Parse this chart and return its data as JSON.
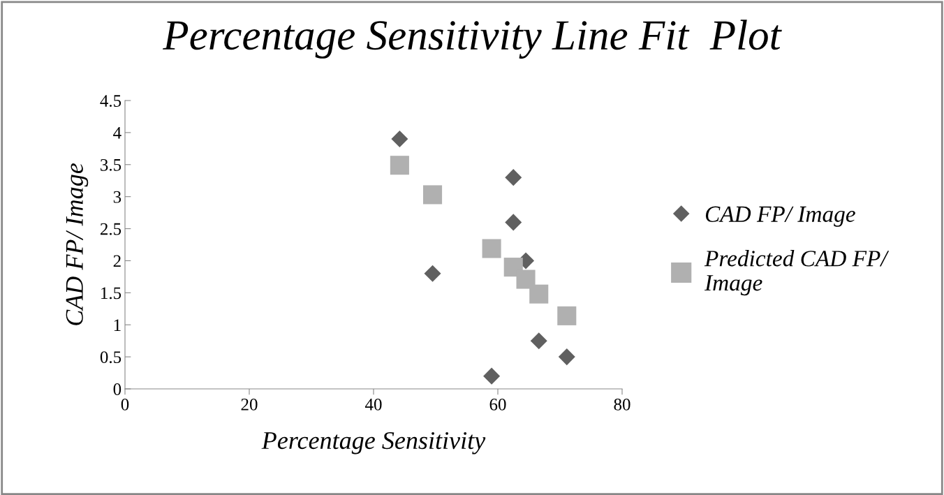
{
  "chart_data": {
    "type": "scatter",
    "title": "Percentage Sensitivity Line Fit  Plot",
    "xlabel": "Percentage Sensitivity",
    "ylabel": "CAD FP/ Image",
    "xlim": [
      0,
      80
    ],
    "xticks": [
      0,
      20,
      40,
      60,
      80
    ],
    "ylim": [
      0,
      4.5
    ],
    "yticks": [
      0,
      0.5,
      1,
      1.5,
      2,
      2.5,
      3,
      3.5,
      4,
      {
        "value": 4.5,
        "label": "4.5"
      }
    ],
    "grid": false,
    "legend": "right",
    "series": [
      {
        "name": "CAD FP/ Image",
        "color": "#606060",
        "marker": "diamond",
        "x": [
          44.2,
          49.5,
          59,
          62.5,
          62.5,
          64.5,
          66.6,
          71.1
        ],
        "values": [
          3.9,
          1.8,
          0.2,
          3.3,
          2.6,
          2.0,
          0.75,
          0.5
        ]
      },
      {
        "name": "Predicted CAD FP/ Image",
        "color": "#b0b0b0",
        "marker": "square",
        "x": [
          44.2,
          49.5,
          59,
          62.5,
          64.5,
          66.6,
          71.1
        ],
        "values": [
          3.49,
          3.03,
          2.19,
          1.9,
          1.71,
          1.48,
          1.14
        ]
      }
    ]
  }
}
